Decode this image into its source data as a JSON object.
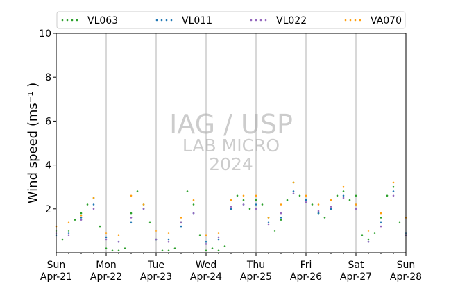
{
  "chart_data": {
    "type": "scatter",
    "ylabel": "Wind speed (ms⁻¹ )",
    "ylim": [
      0,
      10
    ],
    "yticks": [
      2,
      4,
      6,
      8,
      10
    ],
    "xlim": [
      "2024-04-21T00:00",
      "2024-04-28T00:00"
    ],
    "xticks": [
      {
        "date": "2024-04-21",
        "day": "Sun",
        "month_day": "Apr-21"
      },
      {
        "date": "2024-04-22",
        "day": "Mon",
        "month_day": "Apr-22"
      },
      {
        "date": "2024-04-23",
        "day": "Tue",
        "month_day": "Apr-23"
      },
      {
        "date": "2024-04-24",
        "day": "Wed",
        "month_day": "Apr-24"
      },
      {
        "date": "2024-04-25",
        "day": "Thu",
        "month_day": "Apr-25"
      },
      {
        "date": "2024-04-26",
        "day": "Fri",
        "month_day": "Apr-26"
      },
      {
        "date": "2024-04-27",
        "day": "Sat",
        "month_day": "Apr-27"
      },
      {
        "date": "2024-04-28",
        "day": "Sun",
        "month_day": "Apr-28"
      }
    ],
    "grid": "vertical",
    "legend": "top",
    "watermark": [
      "IAG / USP",
      "LAB MICRO",
      "2024"
    ],
    "series": [
      {
        "name": "VL063",
        "color": "#2ca02c",
        "x": [
          "2024-04-21T00:00",
          "2024-04-21T03:00",
          "2024-04-21T06:00",
          "2024-04-21T09:00",
          "2024-04-21T12:00",
          "2024-04-21T15:00",
          "2024-04-21T18:00",
          "2024-04-21T21:00",
          "2024-04-22T00:00",
          "2024-04-22T03:00",
          "2024-04-22T06:00",
          "2024-04-22T09:00",
          "2024-04-22T12:00",
          "2024-04-22T15:00",
          "2024-04-22T18:00",
          "2024-04-22T21:00",
          "2024-04-23T00:00",
          "2024-04-23T03:00",
          "2024-04-23T06:00",
          "2024-04-23T09:00",
          "2024-04-23T12:00",
          "2024-04-23T15:00",
          "2024-04-23T18:00",
          "2024-04-23T21:00",
          "2024-04-24T00:00",
          "2024-04-24T03:00",
          "2024-04-24T06:00",
          "2024-04-24T09:00",
          "2024-04-24T12:00",
          "2024-04-24T15:00",
          "2024-04-24T18:00",
          "2024-04-24T21:00",
          "2024-04-25T00:00",
          "2024-04-25T03:00",
          "2024-04-25T06:00",
          "2024-04-25T09:00",
          "2024-04-25T12:00",
          "2024-04-25T15:00",
          "2024-04-25T18:00",
          "2024-04-25T21:00",
          "2024-04-26T00:00",
          "2024-04-26T03:00",
          "2024-04-26T06:00",
          "2024-04-26T09:00",
          "2024-04-26T12:00",
          "2024-04-26T15:00",
          "2024-04-26T18:00",
          "2024-04-26T21:00",
          "2024-04-27T00:00",
          "2024-04-27T03:00",
          "2024-04-27T06:00",
          "2024-04-27T09:00",
          "2024-04-27T12:00",
          "2024-04-27T15:00",
          "2024-04-27T18:00",
          "2024-04-27T21:00",
          "2024-04-28T00:00"
        ],
        "y": [
          1.0,
          0.6,
          1.0,
          1.5,
          1.8,
          2.2,
          2.5,
          1.2,
          0.2,
          0.1,
          0.1,
          0.2,
          1.8,
          2.8,
          2.2,
          1.4,
          0.6,
          0.1,
          0.1,
          0.2,
          1.4,
          2.8,
          2.2,
          0.8,
          0.1,
          0.2,
          0.1,
          0.3,
          2.0,
          2.6,
          2.4,
          2.0,
          2.4,
          2.2,
          1.6,
          1.0,
          1.5,
          2.4,
          3.2,
          2.6,
          2.4,
          2.2,
          1.8,
          1.6,
          2.0,
          2.6,
          2.8,
          2.4,
          2.6,
          0.8,
          0.6,
          0.9,
          1.6,
          2.6,
          3.0,
          1.4,
          0.8
        ]
      },
      {
        "name": "VL011",
        "color": "#1f77b4",
        "x": [
          "2024-04-21T00:00",
          "2024-04-21T06:00",
          "2024-04-21T12:00",
          "2024-04-21T18:00",
          "2024-04-22T00:00",
          "2024-04-22T06:00",
          "2024-04-22T12:00",
          "2024-04-22T18:00",
          "2024-04-23T00:00",
          "2024-04-23T06:00",
          "2024-04-23T12:00",
          "2024-04-23T18:00",
          "2024-04-24T00:00",
          "2024-04-24T06:00",
          "2024-04-24T12:00",
          "2024-04-24T18:00",
          "2024-04-25T00:00",
          "2024-04-25T06:00",
          "2024-04-25T12:00",
          "2024-04-25T18:00",
          "2024-04-26T00:00",
          "2024-04-26T06:00",
          "2024-04-26T12:00",
          "2024-04-26T18:00",
          "2024-04-27T00:00",
          "2024-04-27T06:00",
          "2024-04-27T12:00",
          "2024-04-27T18:00",
          "2024-04-28T00:00"
        ],
        "y": [
          0.8,
          0.9,
          1.6,
          2.2,
          0.7,
          0.5,
          1.4,
          2.0,
          0.6,
          0.6,
          1.2,
          1.8,
          0.5,
          0.6,
          2.0,
          2.2,
          2.2,
          1.4,
          1.6,
          2.8,
          2.4,
          1.8,
          2.0,
          2.6,
          2.2,
          0.5,
          1.4,
          2.8,
          0.9
        ]
      },
      {
        "name": "VL022",
        "color": "#9467bd",
        "x": [
          "2024-04-21T00:00",
          "2024-04-21T06:00",
          "2024-04-21T12:00",
          "2024-04-21T18:00",
          "2024-04-22T00:00",
          "2024-04-22T06:00",
          "2024-04-22T12:00",
          "2024-04-22T18:00",
          "2024-04-23T00:00",
          "2024-04-23T06:00",
          "2024-04-23T12:00",
          "2024-04-23T18:00",
          "2024-04-24T00:00",
          "2024-04-24T06:00",
          "2024-04-24T12:00",
          "2024-04-24T18:00",
          "2024-04-25T00:00",
          "2024-04-25T06:00",
          "2024-04-25T12:00",
          "2024-04-25T18:00",
          "2024-04-26T00:00",
          "2024-04-26T06:00",
          "2024-04-26T12:00",
          "2024-04-26T18:00",
          "2024-04-27T00:00",
          "2024-04-27T06:00",
          "2024-04-27T12:00",
          "2024-04-27T18:00",
          "2024-04-28T00:00"
        ],
        "y": [
          0.9,
          0.8,
          1.5,
          2.0,
          0.6,
          0.5,
          1.6,
          2.0,
          0.6,
          0.5,
          1.4,
          1.8,
          0.4,
          0.7,
          2.1,
          2.2,
          2.0,
          1.3,
          1.8,
          2.7,
          2.3,
          1.9,
          2.1,
          2.5,
          2.0,
          0.5,
          1.2,
          2.6,
          0.8
        ]
      },
      {
        "name": "VA070",
        "color": "#ff9f0e",
        "x": [
          "2024-04-21T00:00",
          "2024-04-21T06:00",
          "2024-04-21T12:00",
          "2024-04-21T18:00",
          "2024-04-22T00:00",
          "2024-04-22T06:00",
          "2024-04-22T12:00",
          "2024-04-22T18:00",
          "2024-04-23T00:00",
          "2024-04-23T06:00",
          "2024-04-23T12:00",
          "2024-04-23T18:00",
          "2024-04-24T00:00",
          "2024-04-24T06:00",
          "2024-04-24T12:00",
          "2024-04-24T18:00",
          "2024-04-25T00:00",
          "2024-04-25T06:00",
          "2024-04-25T12:00",
          "2024-04-25T18:00",
          "2024-04-26T00:00",
          "2024-04-26T06:00",
          "2024-04-26T12:00",
          "2024-04-26T18:00",
          "2024-04-27T00:00",
          "2024-04-27T06:00",
          "2024-04-27T12:00",
          "2024-04-27T18:00",
          "2024-04-28T00:00"
        ],
        "y": [
          1.2,
          1.4,
          1.7,
          2.5,
          0.9,
          0.8,
          2.6,
          2.2,
          1.0,
          0.9,
          1.6,
          2.4,
          0.8,
          0.9,
          2.4,
          2.6,
          2.6,
          1.6,
          2.2,
          3.2,
          2.6,
          2.2,
          2.4,
          3.0,
          2.2,
          1.0,
          1.8,
          3.2,
          1.6
        ]
      }
    ]
  }
}
